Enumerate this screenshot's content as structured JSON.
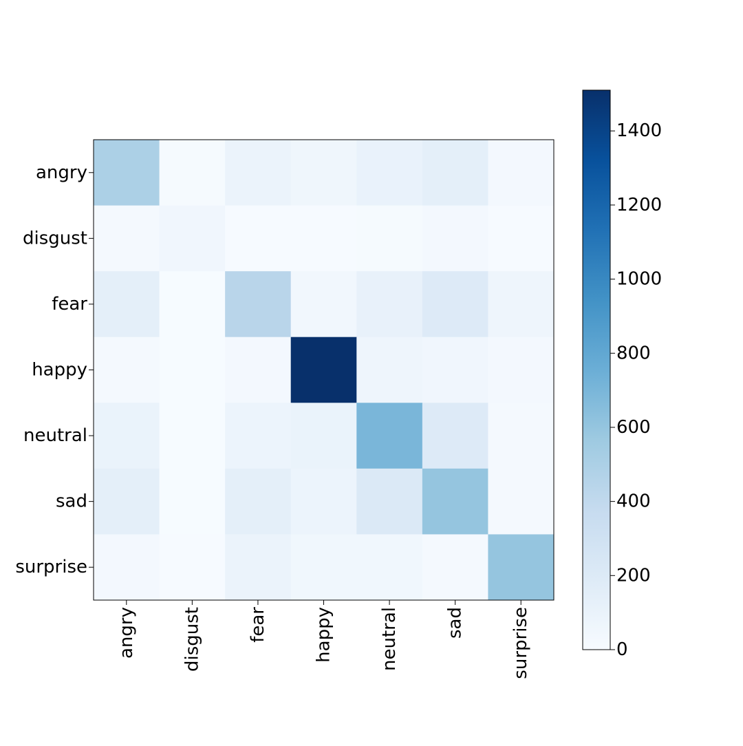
{
  "chart_data": {
    "type": "heatmap",
    "title": "",
    "xlabel": "",
    "ylabel": "",
    "rows": [
      "angry",
      "disgust",
      "fear",
      "happy",
      "neutral",
      "sad",
      "surprise"
    ],
    "columns": [
      "angry",
      "disgust",
      "fear",
      "happy",
      "neutral",
      "sad",
      "surprise"
    ],
    "values": [
      [
        500,
        15,
        90,
        60,
        105,
        140,
        30
      ],
      [
        25,
        55,
        10,
        10,
        15,
        30,
        10
      ],
      [
        140,
        5,
        440,
        45,
        115,
        200,
        70
      ],
      [
        25,
        5,
        30,
        1510,
        70,
        55,
        30
      ],
      [
        100,
        5,
        80,
        100,
        700,
        200,
        20
      ],
      [
        140,
        5,
        140,
        80,
        215,
        600,
        25
      ],
      [
        30,
        10,
        90,
        50,
        50,
        25,
        600
      ]
    ],
    "colorbar": {
      "min": 0,
      "max": 1510,
      "ticks": [
        0,
        200,
        400,
        600,
        800,
        1000,
        1200,
        1400
      ],
      "tick_labels": [
        "0",
        "200",
        "400",
        "600",
        "800",
        "1000",
        "1200",
        "1400"
      ]
    },
    "colormap": [
      "#f7fbff",
      "#deebf7",
      "#c6dbef",
      "#9ecae1",
      "#6baed6",
      "#4292c6",
      "#2171b5",
      "#08519c",
      "#08306b"
    ],
    "grid": false
  }
}
